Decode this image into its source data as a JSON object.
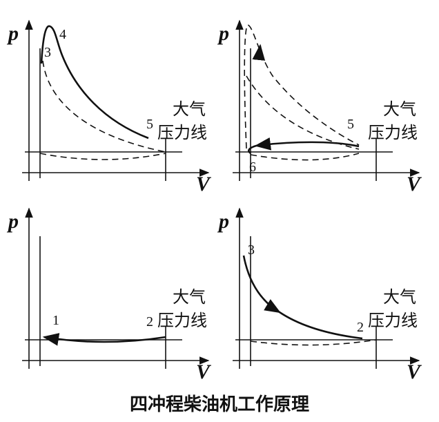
{
  "panels": [
    {
      "axis_y": "p",
      "axis_x": "V",
      "atmosphere": [
        "大气",
        "压力线"
      ],
      "points": [
        "3",
        "4",
        "5"
      ]
    },
    {
      "axis_y": "p",
      "axis_x": "V",
      "atmosphere": [
        "大气",
        "压力线"
      ],
      "points": [
        "5",
        "6"
      ]
    },
    {
      "axis_y": "p",
      "axis_x": "V",
      "atmosphere": [
        "大气",
        "压力线"
      ],
      "points": [
        "1",
        "2"
      ]
    },
    {
      "axis_y": "p",
      "axis_x": "V",
      "atmosphere": [
        "大气",
        "压力线"
      ],
      "points": [
        "3",
        "2"
      ]
    }
  ],
  "caption": "四冲程柴油机工作原理"
}
